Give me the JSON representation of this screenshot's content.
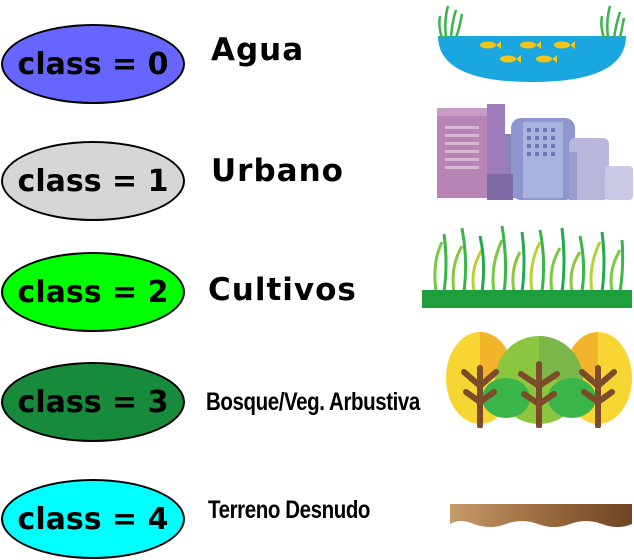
{
  "classes": [
    {
      "label": "class = 0",
      "name": "Agua",
      "color": "#6666ff",
      "icon": "water-pond-icon"
    },
    {
      "label": "class = 1",
      "name": "Urbano",
      "color": "#d6d6d6",
      "icon": "city-buildings-icon"
    },
    {
      "label": "class = 2",
      "name": "Cultivos",
      "color": "#00ff00",
      "icon": "grass-crops-icon"
    },
    {
      "label": "class = 3",
      "name": "Bosque/Veg. Arbustiva",
      "color": "#178a3c",
      "icon": "forest-trees-icon"
    },
    {
      "label": "class = 4",
      "name": "Terreno Desnudo",
      "color": "#00ffff",
      "icon": "bare-soil-icon"
    }
  ]
}
